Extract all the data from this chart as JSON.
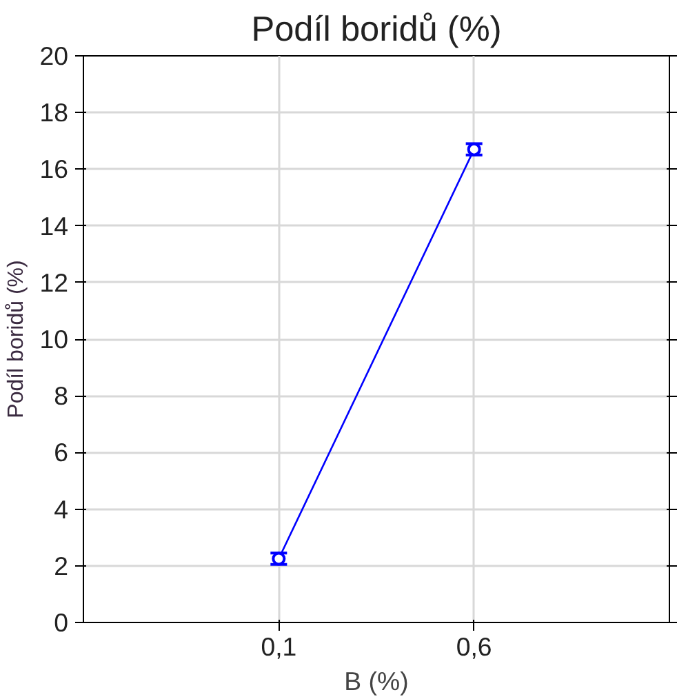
{
  "chart_data": {
    "type": "line",
    "title": "Podíl boridů (%)",
    "xlabel": "B (%)",
    "ylabel": "Podíl boridů (%)",
    "categories": [
      "0,1",
      "0,6"
    ],
    "series": [
      {
        "color": "#0000ff",
        "values": [
          2.25,
          16.7
        ],
        "errors": [
          0.2,
          0.2
        ]
      }
    ],
    "ylim": [
      0,
      20
    ],
    "yticks": [
      0,
      2,
      4,
      6,
      8,
      10,
      12,
      14,
      16,
      18,
      20
    ],
    "grid": true,
    "marker": "circle",
    "line_style": "solid"
  }
}
